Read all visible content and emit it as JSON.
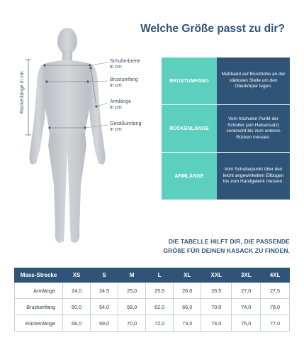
{
  "heading": "Welche Größe passt zu dir?",
  "measure_labels": {
    "schulterbreite": "Schulterbreite\nin cm",
    "brustumfang": "Brustumfang\nin cm",
    "armlaenge": "Armlänge\nin cm",
    "gesaessumfang": "Gesäßumfang\nin cm",
    "rueckenlaenge": "Rückenlänge in cm"
  },
  "info_rows": [
    {
      "key": "BRUSTUMFANG",
      "desc": "Maßband auf Brusthöhe an der stärksten Stelle um den Oberkörper legen."
    },
    {
      "key": "RÜCKENLÄNGE",
      "desc": "Vom höchsten Punkt der Schulter (am Halsansatz) senkrecht bis zum unteren Rücken messen."
    },
    {
      "key": "ARMLÄNGE",
      "desc": "Vom Schulterpunkt über den leicht angewinkelten Ellbogen bis zum Handgelenk messen."
    }
  ],
  "cta": {
    "line1": "DIE TABELLE HILFT DIR, DIE PASSENDE",
    "line2": "GRÖßE FÜR DEINEN KASACK ZU FINDEN."
  },
  "table": {
    "corner": "Mass-Strecke",
    "columns": [
      "XS",
      "S",
      "M",
      "L",
      "XL",
      "XXL",
      "3XL",
      "4XL"
    ],
    "rows": [
      {
        "label": "Armlänge",
        "values": [
          "24,0",
          "24,5",
          "25,0",
          "25,5",
          "26,0",
          "26,5",
          "27,0",
          "27,5"
        ]
      },
      {
        "label": "Brustumfang",
        "values": [
          "50,0",
          "54,0",
          "58,0",
          "62,0",
          "66,0",
          "70,0",
          "74,0",
          "78,0"
        ]
      },
      {
        "label": "Rückenlänge",
        "values": [
          "68,0",
          "69,0",
          "70,0",
          "72,0",
          "73,0",
          "74,0",
          "75,0",
          "77,0"
        ]
      }
    ]
  },
  "colors": {
    "navy": "#2f5478",
    "teal": "#5ccfbf",
    "figure": "#c4c8cc"
  }
}
